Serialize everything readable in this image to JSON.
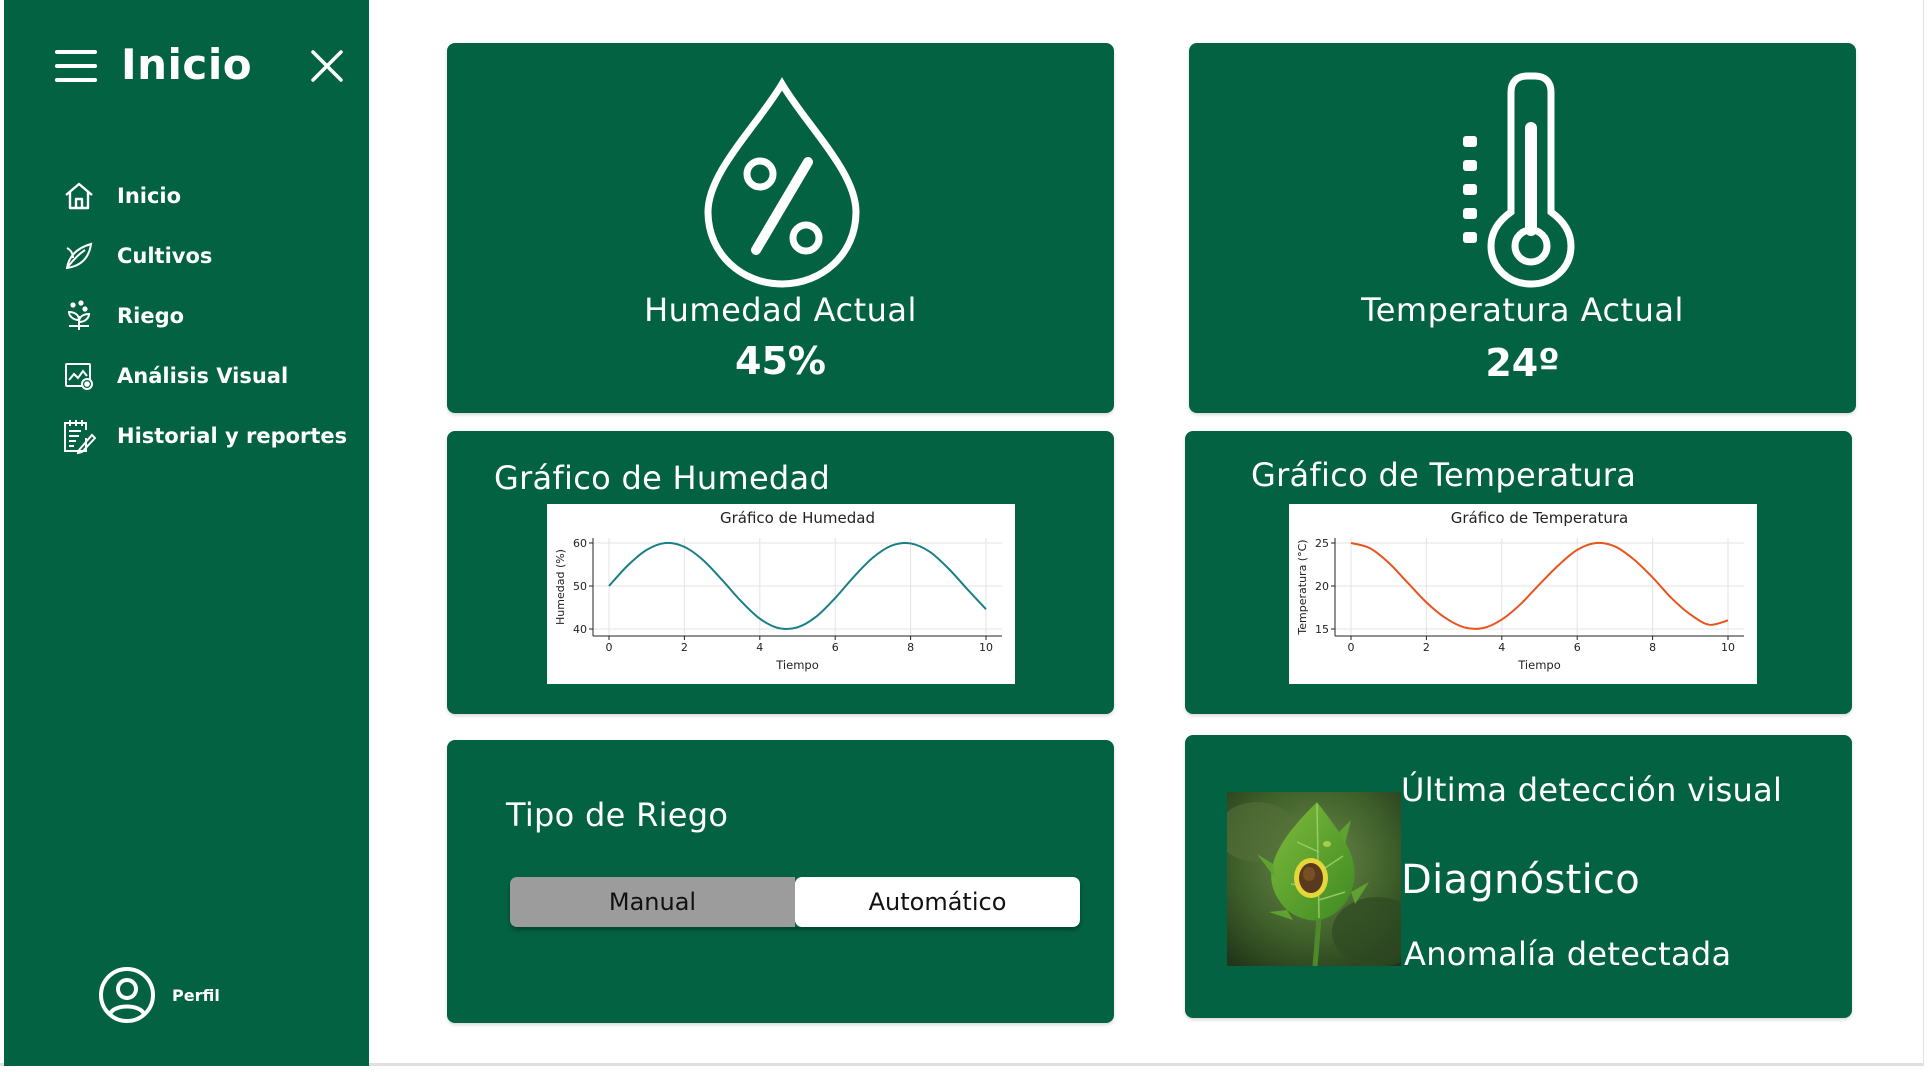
{
  "sidebar": {
    "title": "Inicio",
    "items": [
      {
        "label": "Inicio",
        "icon": "home-icon"
      },
      {
        "label": "Cultivos",
        "icon": "leaf-icon"
      },
      {
        "label": "Riego",
        "icon": "sprout-water-icon"
      },
      {
        "label": "Análisis Visual",
        "icon": "image-analysis-icon"
      },
      {
        "label": "Historial y reportes",
        "icon": "report-icon"
      }
    ],
    "profile_label": "Perfil"
  },
  "humidity": {
    "label": "Humedad Actual",
    "value": "45%",
    "icon": "humidity-drop-icon"
  },
  "temperature": {
    "label": "Temperatura Actual",
    "value": "24º",
    "icon": "thermometer-icon"
  },
  "humidity_chart_card": {
    "title": "Gráfico de Humedad"
  },
  "temperature_chart_card": {
    "title": "Gráfico de Temperatura"
  },
  "irrigation": {
    "title": "Tipo de Riego",
    "options": [
      "Manual",
      "Automático"
    ],
    "selected": "Automático"
  },
  "diagnosis": {
    "heading": "Última detección visual",
    "title": "Diagnóstico",
    "result": "Anomalía detectada",
    "image": "tomato-leaf-photo"
  },
  "colors": {
    "primary": "#026241",
    "humidity_line": "#1a7f86",
    "temperature_line": "#e8541c"
  },
  "chart_data": [
    {
      "type": "line",
      "title": "Gráfico de Humedad",
      "xlabel": "Tiempo",
      "ylabel": "Humedad (%)",
      "xlim": [
        0,
        10
      ],
      "ylim": [
        40,
        60
      ],
      "xticks": [
        0,
        2,
        4,
        6,
        8,
        10
      ],
      "yticks": [
        40,
        50,
        60
      ],
      "grid": true,
      "series": [
        {
          "x": [
            0,
            0.5,
            1,
            1.5,
            2,
            2.5,
            3,
            3.5,
            4,
            4.5,
            5,
            5.5,
            6,
            6.5,
            7,
            7.5,
            8,
            8.5,
            9,
            9.5,
            10
          ],
          "values": [
            50,
            54.8,
            58.4,
            60,
            59.1,
            56,
            51.4,
            46.5,
            42.4,
            40.2,
            40.4,
            42.9,
            47.2,
            52.2,
            56.6,
            59.4,
            59.9,
            58,
            54.1,
            49.3,
            44.6
          ]
        }
      ]
    },
    {
      "type": "line",
      "title": "Gráfico de Temperatura",
      "xlabel": "Tiempo",
      "ylabel": "Temperatura (°C)",
      "xlim": [
        0,
        10
      ],
      "ylim": [
        15,
        25
      ],
      "xticks": [
        0,
        2,
        4,
        6,
        8,
        10
      ],
      "yticks": [
        15,
        20,
        25
      ],
      "grid": true,
      "series": [
        {
          "x": [
            0,
            0.5,
            1,
            1.5,
            2,
            2.5,
            3,
            3.5,
            4,
            4.5,
            5,
            5.5,
            6,
            6.5,
            7,
            7.5,
            8,
            8.5,
            9,
            9.5,
            10
          ],
          "values": [
            25,
            24.4,
            22.7,
            20.4,
            18.1,
            16.3,
            15.2,
            15.1,
            16.1,
            17.9,
            20.2,
            22.4,
            24.2,
            25,
            24.6,
            23.1,
            21,
            18.6,
            16.7,
            15.5,
            16
          ]
        }
      ]
    }
  ]
}
